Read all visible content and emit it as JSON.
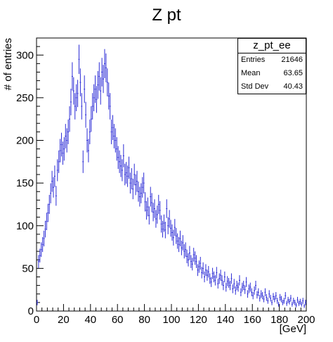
{
  "chart_data": {
    "type": "scatter",
    "title": "Z pt",
    "xlabel": "[GeV]",
    "ylabel": "# of entries",
    "xlim": [
      0,
      200
    ],
    "ylim": [
      0,
      320
    ],
    "xticks": [
      0,
      20,
      40,
      60,
      80,
      100,
      120,
      140,
      160,
      180,
      200
    ],
    "yticks": [
      0,
      50,
      100,
      150,
      200,
      250,
      300
    ],
    "bin_width": 1,
    "marker_color": "#2b2bd6",
    "legend": "none",
    "stats_box": {
      "name": "z_pt_ee",
      "rows": [
        {
          "label": "Entries",
          "value": "21646"
        },
        {
          "label": "Mean",
          "value": "63.65"
        },
        {
          "label": "Std Dev",
          "value": "40.43"
        }
      ]
    },
    "x": [
      0.5,
      1.5,
      2.5,
      3.5,
      4.5,
      5.5,
      6.5,
      7.5,
      8.5,
      9.5,
      10.5,
      11.5,
      12.5,
      13.5,
      14.5,
      15.5,
      16.5,
      17.5,
      18.5,
      19.5,
      20.5,
      21.5,
      22.5,
      23.5,
      24.5,
      25.5,
      26.5,
      27.5,
      28.5,
      29.5,
      30.5,
      31.5,
      32.5,
      33.5,
      34.5,
      35.5,
      36.5,
      37.5,
      38.5,
      39.5,
      40.5,
      41.5,
      42.5,
      43.5,
      44.5,
      45.5,
      46.5,
      47.5,
      48.5,
      49.5,
      50.5,
      51.5,
      52.5,
      53.5,
      54.5,
      55.5,
      56.5,
      57.5,
      58.5,
      59.5,
      60.5,
      61.5,
      62.5,
      63.5,
      64.5,
      65.5,
      66.5,
      67.5,
      68.5,
      69.5,
      70.5,
      71.5,
      72.5,
      73.5,
      74.5,
      75.5,
      76.5,
      77.5,
      78.5,
      79.5,
      80.5,
      81.5,
      82.5,
      83.5,
      84.5,
      85.5,
      86.5,
      87.5,
      88.5,
      89.5,
      90.5,
      91.5,
      92.5,
      93.5,
      94.5,
      95.5,
      96.5,
      97.5,
      98.5,
      99.5,
      100.5,
      101.5,
      102.5,
      103.5,
      104.5,
      105.5,
      106.5,
      107.5,
      108.5,
      109.5,
      110.5,
      111.5,
      112.5,
      113.5,
      114.5,
      115.5,
      116.5,
      117.5,
      118.5,
      119.5,
      120.5,
      121.5,
      122.5,
      123.5,
      124.5,
      125.5,
      126.5,
      127.5,
      128.5,
      129.5,
      130.5,
      131.5,
      132.5,
      133.5,
      134.5,
      135.5,
      136.5,
      137.5,
      138.5,
      139.5,
      140.5,
      141.5,
      142.5,
      143.5,
      144.5,
      145.5,
      146.5,
      147.5,
      148.5,
      149.5,
      150.5,
      151.5,
      152.5,
      153.5,
      154.5,
      155.5,
      156.5,
      157.5,
      158.5,
      159.5,
      160.5,
      161.5,
      162.5,
      163.5,
      164.5,
      165.5,
      166.5,
      167.5,
      168.5,
      169.5,
      170.5,
      171.5,
      172.5,
      173.5,
      174.5,
      175.5,
      176.5,
      177.5,
      178.5,
      179.5,
      180.5,
      181.5,
      182.5,
      183.5,
      184.5,
      185.5,
      186.5,
      187.5,
      188.5,
      189.5,
      190.5,
      191.5,
      192.5,
      193.5,
      194.5,
      195.5,
      196.5,
      197.5,
      198.5,
      199.5
    ],
    "y": [
      10,
      58,
      65,
      72,
      78,
      85,
      96,
      105,
      115,
      125,
      138,
      152,
      145,
      158,
      135,
      165,
      175,
      188,
      195,
      185,
      190,
      205,
      200,
      210,
      225,
      245,
      275,
      258,
      240,
      250,
      255,
      295,
      268,
      240,
      175,
      260,
      230,
      200,
      188,
      210,
      225,
      240,
      250,
      260,
      248,
      265,
      275,
      258,
      280,
      272,
      290,
      285,
      268,
      252,
      240,
      210,
      215,
      205,
      200,
      190,
      180,
      175,
      170,
      165,
      182,
      160,
      162,
      158,
      168,
      150,
      155,
      143,
      160,
      148,
      152,
      140,
      134,
      138,
      145,
      150,
      128,
      118,
      122,
      112,
      134,
      127,
      116,
      120,
      108,
      113,
      125,
      118,
      102,
      96,
      103,
      95,
      120,
      100,
      108,
      97,
      92,
      86,
      98,
      88,
      82,
      78,
      85,
      74,
      80,
      70,
      72,
      64,
      60,
      68,
      58,
      55,
      66,
      62,
      58,
      48,
      52,
      56,
      45,
      50,
      40,
      48,
      42,
      46,
      38,
      34,
      44,
      40,
      36,
      45,
      32,
      38,
      42,
      36,
      30,
      40,
      28,
      35,
      33,
      30,
      38,
      26,
      32,
      24,
      30,
      28,
      36,
      22,
      28,
      30,
      25,
      34,
      20,
      26,
      28,
      22,
      18,
      24,
      30,
      19,
      22,
      15,
      20,
      18,
      14,
      22,
      16,
      12,
      20,
      15,
      10,
      17,
      14,
      18,
      12,
      8,
      16,
      14,
      10,
      12,
      18,
      9,
      13,
      11,
      15,
      8,
      12,
      10,
      7,
      13,
      9,
      11,
      8,
      12,
      6,
      10
    ]
  }
}
